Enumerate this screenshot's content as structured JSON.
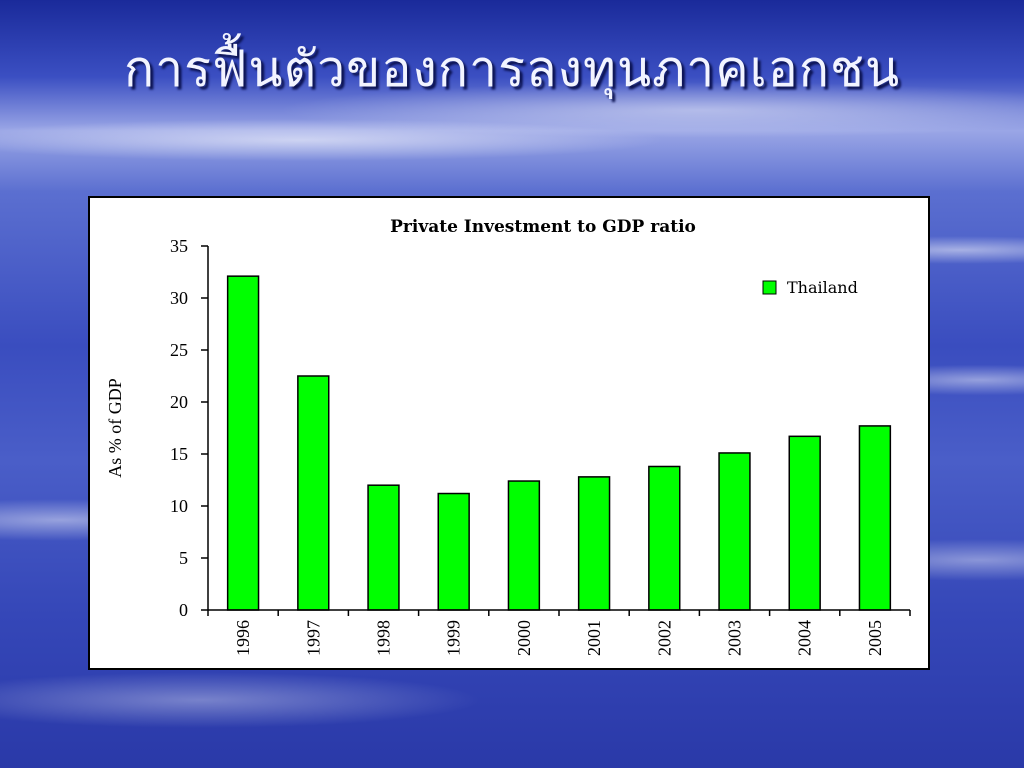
{
  "slide": {
    "title": "การฟื้นตัวของการลงทุนภาคเอกชน"
  },
  "chart_data": {
    "type": "bar",
    "title": "Private Investment to GDP ratio",
    "xlabel": "",
    "ylabel": "As % of GDP",
    "categories": [
      "1996",
      "1997",
      "1998",
      "1999",
      "2000",
      "2001",
      "2002",
      "2003",
      "2004",
      "2005"
    ],
    "series": [
      {
        "name": "Thailand",
        "color": "#00ff00",
        "values": [
          32.1,
          22.5,
          12.0,
          11.2,
          12.4,
          12.8,
          13.8,
          15.1,
          16.7,
          17.7
        ]
      }
    ],
    "ylim": [
      0,
      35
    ],
    "yticks": [
      0,
      5,
      10,
      15,
      20,
      25,
      30,
      35
    ],
    "grid": false,
    "legend_position": "top-right"
  }
}
